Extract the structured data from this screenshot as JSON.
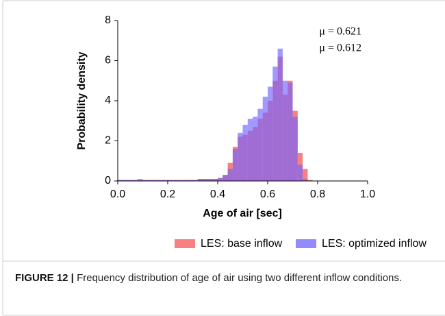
{
  "chart_data": {
    "type": "histogram",
    "xlabel": "Age of air [sec]",
    "ylabel": "Probability density",
    "bins": [
      0,
      0.02,
      0.04,
      0.06,
      0.08,
      0.1,
      0.12,
      0.14,
      0.16,
      0.18,
      0.2,
      0.22,
      0.24,
      0.26,
      0.28,
      0.3,
      0.32,
      0.34,
      0.36,
      0.38,
      0.4,
      0.42,
      0.44,
      0.46,
      0.48,
      0.5,
      0.52,
      0.54,
      0.56,
      0.58,
      0.6,
      0.62,
      0.64,
      0.66,
      0.68,
      0.7,
      0.72,
      0.74,
      0.76,
      0.78,
      0.8
    ],
    "series": [
      {
        "name": "LES: base inflow",
        "color": "#f86a6a",
        "values": [
          0.05,
          0.05,
          0.05,
          0.05,
          0.1,
          0.05,
          0.05,
          0.05,
          0.05,
          0.05,
          0.05,
          0.05,
          0.05,
          0.05,
          0.05,
          0.05,
          0.1,
          0.1,
          0.1,
          0.1,
          0.15,
          0.3,
          0.9,
          1.7,
          2.2,
          2.3,
          2.5,
          2.7,
          3.1,
          3.4,
          4.0,
          5.0,
          6.2,
          4.3,
          5.0,
          3.5,
          1.4,
          0.6,
          0.05,
          0
        ]
      },
      {
        "name": "LES: optimized inflow",
        "color": "#6f63ff",
        "values": [
          0.05,
          0.05,
          0.05,
          0.05,
          0.05,
          0.05,
          0.05,
          0.05,
          0.05,
          0.05,
          0.05,
          0.05,
          0.05,
          0.05,
          0.05,
          0.05,
          0.1,
          0.1,
          0.1,
          0.1,
          0.15,
          0.3,
          0.6,
          1.6,
          2.4,
          2.8,
          3.1,
          3.2,
          3.6,
          4.2,
          4.7,
          5.7,
          6.6,
          5.0,
          4.9,
          3.2,
          0.8,
          0.1,
          0,
          0
        ]
      }
    ],
    "annotations": [
      {
        "text": "μ = 0.621",
        "color": "#e8182a"
      },
      {
        "text": "μ = 0.612",
        "color": "#2a2ad0"
      }
    ],
    "xlim": [
      0,
      1
    ],
    "xticks": [
      {
        "value": 0,
        "label": "0.0"
      },
      0.2,
      0.4,
      0.6,
      0.8,
      {
        "value": 1,
        "label": "1.0"
      }
    ],
    "ylim": [
      0,
      8
    ],
    "yticks": [
      0,
      2,
      4,
      6,
      8
    ],
    "legend": "bottom"
  },
  "caption": {
    "label": "FIGURE 12 |",
    "text": "Frequency distribution of age of air using two different inflow conditions."
  }
}
